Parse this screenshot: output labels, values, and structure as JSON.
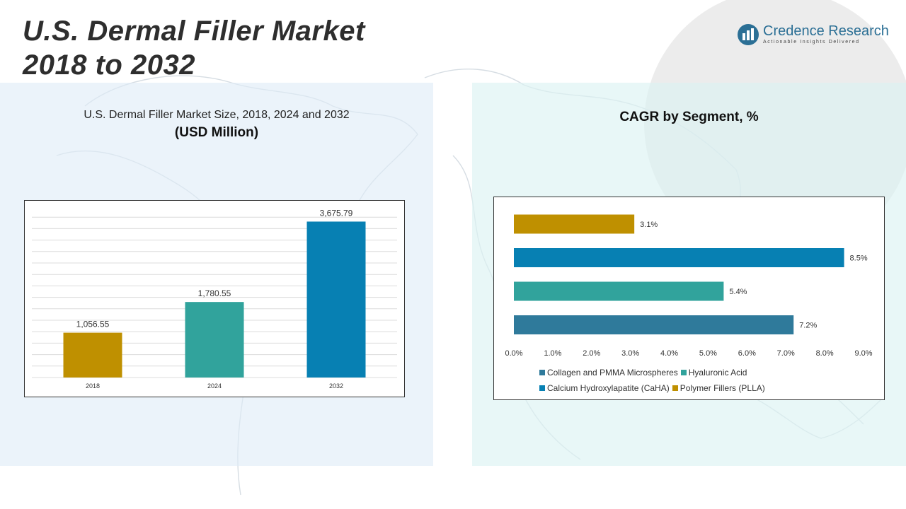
{
  "title": {
    "line1": "U.S. Dermal Filler Market",
    "line2": "2018 to 2032"
  },
  "logo": {
    "name": "Credence Research",
    "tagline": "Actionable Insights Delivered",
    "icon": "credence-logo-icon"
  },
  "left_panel": {
    "subtitle": "U.S. Dermal Filler Market Size, 2018, 2024 and 2032",
    "unit": "(USD Million)"
  },
  "right_panel": {
    "subtitle": "CAGR by Segment, %"
  },
  "colors": {
    "gold": "#bf9000",
    "teal": "#31a39c",
    "blue": "#0780b3",
    "steel": "#2f7a9b"
  },
  "chart_data": [
    {
      "type": "bar",
      "title": "U.S. Dermal Filler Market Size, 2018, 2024 and 2032",
      "ylabel": "(USD Million)",
      "categories": [
        "2018",
        "2024",
        "2032"
      ],
      "values": [
        1056.55,
        1780.55,
        3675.79
      ],
      "value_labels": [
        "1,056.55",
        "1,780.55",
        "3,675.79"
      ],
      "bar_colors": [
        "#bf9000",
        "#31a39c",
        "#0780b3"
      ],
      "ylim": [
        0,
        4000
      ],
      "grid": true,
      "legend": "none"
    },
    {
      "type": "bar",
      "orientation": "horizontal",
      "title": "CAGR by Segment, %",
      "categories": [
        "Polymer Fillers (PLLA)",
        "Calcium Hydroxylapatite (CaHA)",
        "Hyaluronic Acid",
        "Collagen and PMMA Microspheres"
      ],
      "values": [
        3.1,
        8.5,
        5.4,
        7.2
      ],
      "value_labels": [
        "3.1%",
        "8.5%",
        "5.4%",
        "7.2%"
      ],
      "bar_colors": [
        "#bf9000",
        "#0780b3",
        "#31a39c",
        "#2f7a9b"
      ],
      "x_ticks": [
        "0.0%",
        "1.0%",
        "2.0%",
        "3.0%",
        "4.0%",
        "5.0%",
        "6.0%",
        "7.0%",
        "8.0%",
        "9.0%"
      ],
      "xlim": [
        0,
        9
      ],
      "grid": false,
      "legend": "bottom",
      "legend_entries": [
        {
          "label": "Collagen and PMMA Microspheres",
          "color": "#2f7a9b"
        },
        {
          "label": "Hyaluronic Acid",
          "color": "#31a39c"
        },
        {
          "label": "Calcium Hydroxylapatite (CaHA)",
          "color": "#0780b3"
        },
        {
          "label": "Polymer Fillers (PLLA)",
          "color": "#bf9000"
        }
      ]
    }
  ]
}
